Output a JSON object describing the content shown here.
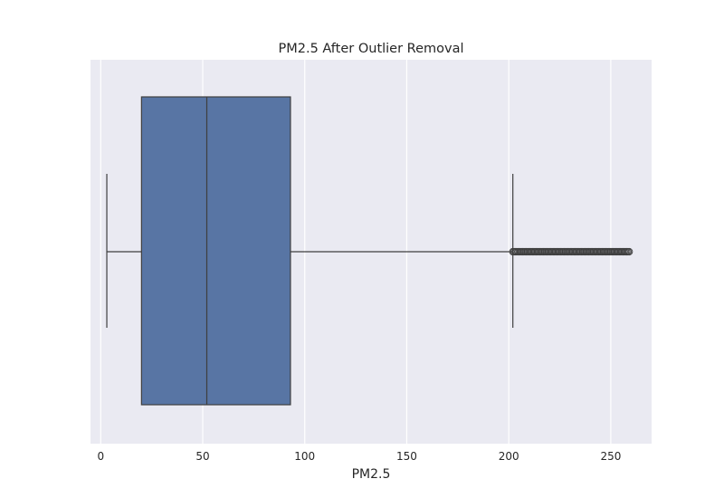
{
  "chart_data": {
    "type": "box",
    "title": "PM2.5 After Outlier Removal",
    "xlabel": "PM2.5",
    "ylabel": "",
    "orientation": "horizontal",
    "xlim": [
      -5,
      270
    ],
    "xticks": [
      0,
      50,
      100,
      150,
      200,
      250
    ],
    "xtick_labels": [
      "0",
      "50",
      "100",
      "150",
      "200",
      "250"
    ],
    "grid": true,
    "box": {
      "whisker_low": 3,
      "q1": 20,
      "median": 52,
      "q3": 93,
      "whisker_high": 202,
      "outliers_range": [
        202,
        259
      ]
    },
    "colors": {
      "box_fill": "#5875a4",
      "line": "#3f3f3f",
      "plot_bg": "#eaeaf2",
      "grid": "#ffffff"
    }
  }
}
